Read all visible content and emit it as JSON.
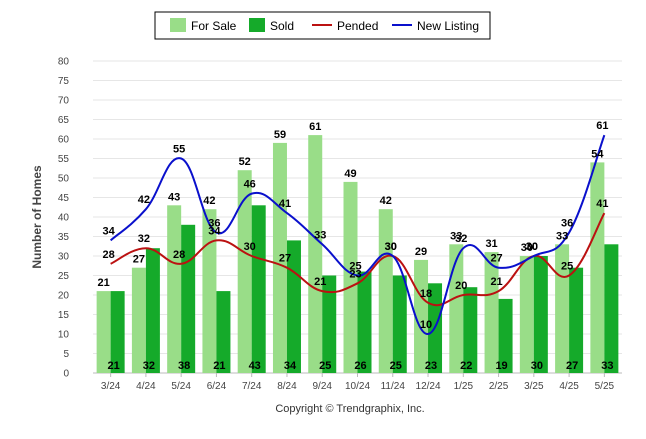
{
  "colors": {
    "for_sale": "#99dd88",
    "sold": "#15aa2a",
    "pended": "#bb1111",
    "new_listing": "#0a10cc"
  },
  "legend": {
    "for_sale": "For Sale",
    "sold": "Sold",
    "pended": "Pended",
    "new_listing": "New Listing"
  },
  "copyright": "Copyright © Trendgraphix, Inc.",
  "chart_data": {
    "type": "bar",
    "ylabel": "Number of Homes",
    "xlabel": "",
    "ylim": [
      0,
      80
    ],
    "ytick_step": 5,
    "grid": true,
    "legend_position": "top-center",
    "categories": [
      "3/24",
      "4/24",
      "5/24",
      "6/24",
      "7/24",
      "8/24",
      "9/24",
      "10/24",
      "11/24",
      "12/24",
      "1/25",
      "2/25",
      "3/25",
      "4/25",
      "5/25"
    ],
    "series": [
      {
        "name": "For Sale",
        "kind": "bar",
        "values": [
          21,
          27,
          43,
          42,
          52,
          59,
          61,
          49,
          42,
          29,
          33,
          31,
          30,
          33,
          54
        ]
      },
      {
        "name": "Sold",
        "kind": "bar",
        "values": [
          21,
          32,
          38,
          21,
          43,
          34,
          25,
          26,
          25,
          23,
          22,
          19,
          30,
          27,
          33
        ]
      },
      {
        "name": "Pended",
        "kind": "line",
        "values": [
          28,
          32,
          28,
          34,
          30,
          27,
          21,
          23,
          30,
          18,
          20,
          21,
          30,
          25,
          41
        ]
      },
      {
        "name": "New Listing",
        "kind": "line",
        "values": [
          34,
          42,
          55,
          36,
          46,
          41,
          33,
          25,
          30,
          10,
          32,
          27,
          30,
          36,
          61
        ]
      }
    ]
  }
}
